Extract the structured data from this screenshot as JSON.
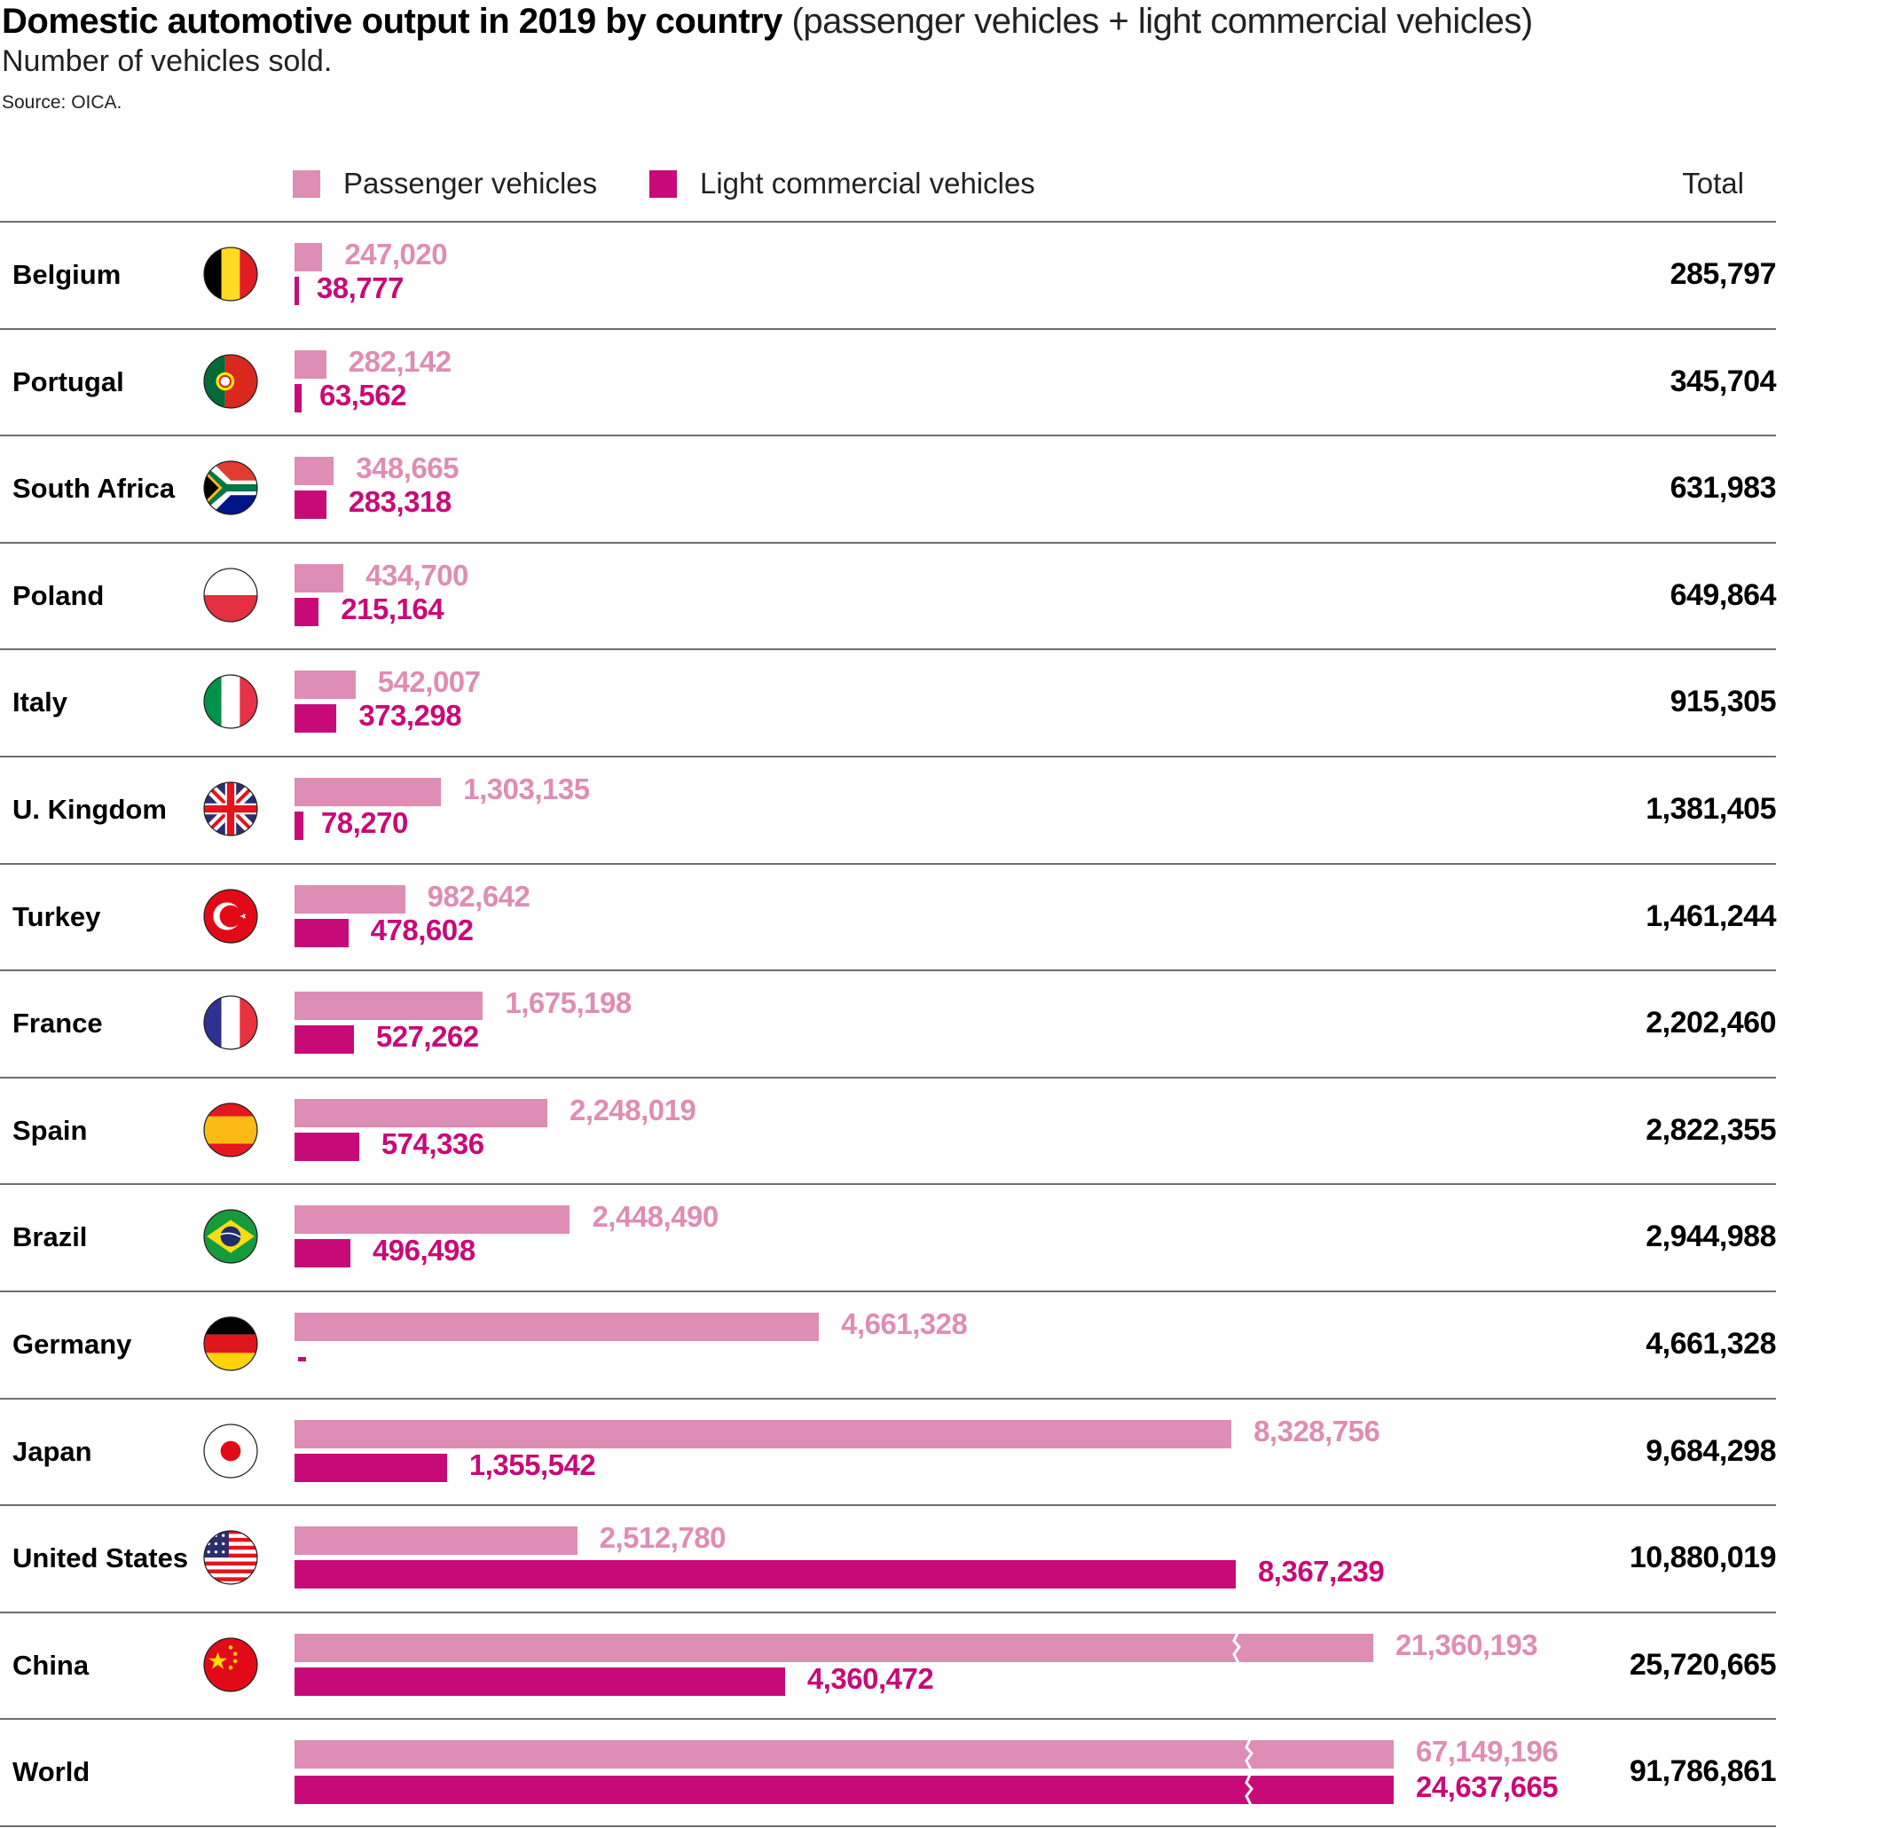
{
  "header": {
    "title_bold": "Domestic automotive output in 2019 by country",
    "title_light": "(passenger vehicles + light commercial vehicles)",
    "subtitle": "Number of vehicles sold.",
    "source": "Source: OICA."
  },
  "colors": {
    "passenger": "#DE8DB4",
    "light_commercial": "#C80A78",
    "text": "#000000",
    "separator": "#6e6e6e"
  },
  "chart_data": {
    "type": "bar",
    "orientation": "horizontal",
    "title": "Domestic automotive output in 2019 by country (passenger vehicles + light commercial vehicles)",
    "subtitle": "Number of vehicles sold.",
    "source": "Source: OICA.",
    "xlabel": "",
    "ylabel": "",
    "grid": false,
    "legend_position": "top-left",
    "total_column_label": "Total",
    "categories": [
      "Belgium",
      "Portugal",
      "South Africa",
      "Poland",
      "Italy",
      "U. Kingdom",
      "Turkey",
      "France",
      "Spain",
      "Brazil",
      "Germany",
      "Japan",
      "United States",
      "China",
      "World"
    ],
    "flags": [
      "belgium-flag",
      "portugal-flag",
      "south-africa-flag",
      "poland-flag",
      "italy-flag",
      "uk-flag",
      "turkey-flag",
      "france-flag",
      "spain-flag",
      "brazil-flag",
      "germany-flag",
      "japan-flag",
      "us-flag",
      "china-flag",
      null
    ],
    "series": [
      {
        "name": "Passenger vehicles",
        "values": [
          247020,
          282142,
          348665,
          434700,
          542007,
          1303135,
          982642,
          1675198,
          2248019,
          2448490,
          4661328,
          8328756,
          2512780,
          21360193,
          67149196
        ],
        "labels": [
          "247,020",
          "282,142",
          "348,665",
          "434,700",
          "542,007",
          "1,303,135",
          "982,642",
          "1,675,198",
          "2,248,019",
          "2,448,490",
          "4,661,328",
          "8,328,756",
          "2,512,780",
          "21,360,193",
          "67,149,196"
        ],
        "axis_break": [
          false,
          false,
          false,
          false,
          false,
          false,
          false,
          false,
          false,
          false,
          false,
          false,
          false,
          true,
          true
        ]
      },
      {
        "name": "Light commercial vehicles",
        "values": [
          38777,
          63562,
          283318,
          215164,
          373298,
          78270,
          478602,
          527262,
          574336,
          496498,
          0,
          1355542,
          8367239,
          4360472,
          24637665
        ],
        "labels": [
          "38,777",
          "63,562",
          "283,318",
          "215,164",
          "373,298",
          "78,270",
          "478,602",
          "527,262",
          "574,336",
          "496,498",
          "-",
          "1,355,542",
          "8,367,239",
          "4,360,472",
          "24,637,665"
        ],
        "axis_break": [
          false,
          false,
          false,
          false,
          false,
          false,
          false,
          false,
          false,
          false,
          false,
          false,
          false,
          false,
          true
        ]
      }
    ],
    "totals": [
      285797,
      345704,
      631983,
      649864,
      915305,
      1381405,
      1461244,
      2202460,
      2822355,
      2944988,
      4661328,
      9684298,
      10880019,
      25720665,
      91786861
    ],
    "total_labels": [
      "285,797",
      "345,704",
      "631,983",
      "649,864",
      "915,305",
      "1,381,405",
      "1,461,244",
      "2,202,460",
      "2,822,355",
      "2,944,988",
      "4,661,328",
      "9,684,298",
      "10,880,019",
      "25,720,665",
      "91,786,861"
    ]
  }
}
